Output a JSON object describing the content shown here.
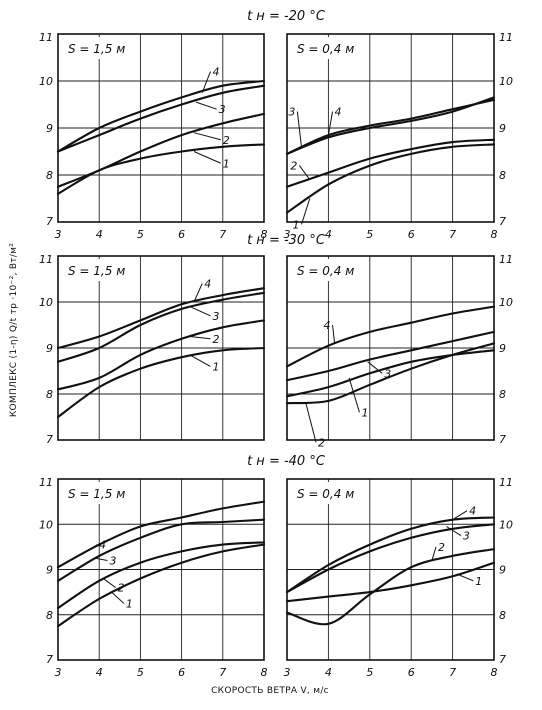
{
  "row_titles": [
    "t н = -20 °С",
    "t н = -30 °С",
    "t н = -40 °С"
  ],
  "axes": {
    "xlabel": "СКОРОСТЬ ВЕТРА V, м/с",
    "ylabel": "КОМПЛЕКС (1-η) Q/t тр ·10⁻², Вт/м²"
  },
  "chart_data": [
    {
      "type": "line",
      "row_title": "t н = -20 °С",
      "panel_label": "S = 1,5 м",
      "xlim": [
        3,
        8
      ],
      "ylim": [
        7,
        11
      ],
      "xticks": [
        "3",
        "4",
        "5",
        "6",
        "7",
        "8"
      ],
      "yticks": [
        "7",
        "8",
        "9",
        "10",
        "11"
      ],
      "ytick_side": "left",
      "series": [
        {
          "name": "1",
          "x": [
            3,
            4,
            5,
            6,
            7,
            8
          ],
          "y": [
            7.6,
            8.1,
            8.35,
            8.5,
            8.6,
            8.65
          ]
        },
        {
          "name": "2",
          "x": [
            3,
            4,
            5,
            6,
            7,
            8
          ],
          "y": [
            7.75,
            8.1,
            8.5,
            8.85,
            9.1,
            9.3
          ]
        },
        {
          "name": "3",
          "x": [
            3,
            4,
            5,
            6,
            7,
            8
          ],
          "y": [
            8.5,
            8.85,
            9.2,
            9.5,
            9.75,
            9.9
          ]
        },
        {
          "name": "4",
          "x": [
            3,
            4,
            5,
            6,
            7,
            8
          ],
          "y": [
            8.5,
            9.0,
            9.35,
            9.65,
            9.9,
            10.0
          ]
        }
      ],
      "line_labels": [
        {
          "text": "1",
          "anchor": [
            6.3,
            8.5
          ],
          "at": [
            6.95,
            8.25
          ]
        },
        {
          "text": "2",
          "anchor": [
            6.3,
            8.9
          ],
          "at": [
            6.95,
            8.75
          ]
        },
        {
          "text": "3",
          "anchor": [
            6.35,
            9.55
          ],
          "at": [
            6.85,
            9.4
          ]
        },
        {
          "text": "4",
          "anchor": [
            6.5,
            9.75
          ],
          "at": [
            6.7,
            10.2
          ]
        }
      ]
    },
    {
      "type": "line",
      "row_title": "t н = -20 °С",
      "panel_label": "S = 0,4 м",
      "xlim": [
        3,
        8
      ],
      "ylim": [
        7,
        11
      ],
      "xticks": [
        "3",
        "4",
        "5",
        "6",
        "7",
        "8"
      ],
      "yticks": [
        "7",
        "8",
        "9",
        "10",
        "11"
      ],
      "ytick_side": "right",
      "series": [
        {
          "name": "1",
          "x": [
            3,
            4,
            5,
            6,
            7,
            8
          ],
          "y": [
            7.2,
            7.8,
            8.2,
            8.45,
            8.6,
            8.65
          ]
        },
        {
          "name": "2",
          "x": [
            3,
            4,
            5,
            6,
            7,
            8
          ],
          "y": [
            7.75,
            8.05,
            8.35,
            8.55,
            8.7,
            8.75
          ]
        },
        {
          "name": "3",
          "x": [
            3,
            4,
            5,
            6,
            7,
            8
          ],
          "y": [
            8.45,
            8.8,
            9.0,
            9.15,
            9.35,
            9.65
          ]
        },
        {
          "name": "4",
          "x": [
            3,
            4,
            5,
            6,
            7,
            8
          ],
          "y": [
            8.45,
            8.85,
            9.05,
            9.2,
            9.4,
            9.6
          ]
        }
      ],
      "line_labels": [
        {
          "text": "1",
          "anchor": [
            3.55,
            7.5
          ],
          "at": [
            3.35,
            6.95
          ]
        },
        {
          "text": "2",
          "anchor": [
            3.55,
            7.9
          ],
          "at": [
            3.3,
            8.2
          ]
        },
        {
          "text": "3",
          "anchor": [
            3.35,
            8.6
          ],
          "at": [
            3.25,
            9.35
          ]
        },
        {
          "text": "4",
          "anchor": [
            4.0,
            8.85
          ],
          "at": [
            4.1,
            9.35
          ]
        }
      ]
    },
    {
      "type": "line",
      "row_title": "t н = -30 °С",
      "panel_label": "S = 1,5 м",
      "xlim": [
        3,
        8
      ],
      "ylim": [
        7,
        11
      ],
      "xticks": [],
      "yticks": [
        "7",
        "8",
        "9",
        "10",
        "11"
      ],
      "ytick_side": "left",
      "series": [
        {
          "name": "1",
          "x": [
            3,
            4,
            5,
            6,
            7,
            8
          ],
          "y": [
            7.5,
            8.15,
            8.55,
            8.8,
            8.95,
            9.0
          ]
        },
        {
          "name": "2",
          "x": [
            3,
            4,
            5,
            6,
            7,
            8
          ],
          "y": [
            8.1,
            8.35,
            8.85,
            9.2,
            9.45,
            9.6
          ]
        },
        {
          "name": "3",
          "x": [
            3,
            4,
            5,
            6,
            7,
            8
          ],
          "y": [
            8.7,
            9.0,
            9.5,
            9.85,
            10.05,
            10.2
          ]
        },
        {
          "name": "4",
          "x": [
            3,
            4,
            5,
            6,
            7,
            8
          ],
          "y": [
            9.0,
            9.25,
            9.6,
            9.95,
            10.15,
            10.3
          ]
        }
      ],
      "line_labels": [
        {
          "text": "1",
          "anchor": [
            6.2,
            8.85
          ],
          "at": [
            6.7,
            8.6
          ]
        },
        {
          "text": "2",
          "anchor": [
            6.2,
            9.25
          ],
          "at": [
            6.7,
            9.2
          ]
        },
        {
          "text": "3",
          "anchor": [
            6.2,
            9.9
          ],
          "at": [
            6.7,
            9.7
          ]
        },
        {
          "text": "4",
          "anchor": [
            6.3,
            10.0
          ],
          "at": [
            6.5,
            10.4
          ]
        }
      ]
    },
    {
      "type": "line",
      "row_title": "t н = -30 °С",
      "panel_label": "S = 0,4 м",
      "xlim": [
        3,
        8
      ],
      "ylim": [
        7,
        11
      ],
      "xticks": [],
      "yticks": [
        "7",
        "8",
        "9",
        "10",
        "11"
      ],
      "ytick_side": "right",
      "series": [
        {
          "name": "1",
          "x": [
            3,
            4,
            5,
            6,
            7,
            8
          ],
          "y": [
            7.95,
            8.15,
            8.45,
            8.7,
            8.85,
            8.95
          ]
        },
        {
          "name": "2",
          "x": [
            3,
            4,
            5,
            6,
            7,
            8
          ],
          "y": [
            7.8,
            7.85,
            8.2,
            8.55,
            8.85,
            9.1
          ]
        },
        {
          "name": "3",
          "x": [
            3,
            4,
            5,
            6,
            7,
            8
          ],
          "y": [
            8.3,
            8.5,
            8.75,
            8.95,
            9.15,
            9.35
          ]
        },
        {
          "name": "4",
          "x": [
            3,
            4,
            5,
            6,
            7,
            8
          ],
          "y": [
            8.6,
            9.05,
            9.35,
            9.55,
            9.75,
            9.9
          ]
        }
      ],
      "line_labels": [
        {
          "text": "1",
          "anchor": [
            4.5,
            8.35
          ],
          "at": [
            4.75,
            7.6
          ]
        },
        {
          "text": "2",
          "anchor": [
            3.45,
            7.82
          ],
          "at": [
            3.7,
            6.95
          ]
        },
        {
          "text": "3",
          "anchor": [
            4.95,
            8.7
          ],
          "at": [
            5.3,
            8.45
          ]
        },
        {
          "text": "4",
          "anchor": [
            4.15,
            9.1
          ],
          "at": [
            4.1,
            9.5
          ]
        }
      ]
    },
    {
      "type": "line",
      "row_title": "t н = -40 °С",
      "panel_label": "S = 1,5 м",
      "xlim": [
        3,
        8
      ],
      "ylim": [
        7,
        11
      ],
      "xticks": [
        "3",
        "4",
        "5",
        "6",
        "7",
        "8"
      ],
      "yticks": [
        "7",
        "8",
        "9",
        "10",
        "11"
      ],
      "ytick_side": "left",
      "series": [
        {
          "name": "1",
          "x": [
            3,
            4,
            5,
            6,
            7,
            8
          ],
          "y": [
            7.75,
            8.35,
            8.8,
            9.15,
            9.4,
            9.55
          ]
        },
        {
          "name": "2",
          "x": [
            3,
            4,
            5,
            6,
            7,
            8
          ],
          "y": [
            8.15,
            8.75,
            9.15,
            9.4,
            9.55,
            9.6
          ]
        },
        {
          "name": "3",
          "x": [
            3,
            4,
            5,
            6,
            7,
            8
          ],
          "y": [
            8.75,
            9.3,
            9.7,
            10.0,
            10.05,
            10.1
          ]
        },
        {
          "name": "4",
          "x": [
            3,
            4,
            5,
            6,
            7,
            8
          ],
          "y": [
            9.05,
            9.55,
            9.95,
            10.15,
            10.35,
            10.5
          ]
        }
      ],
      "line_labels": [
        {
          "text": "1",
          "anchor": [
            4.3,
            8.5
          ],
          "at": [
            4.6,
            8.25
          ]
        },
        {
          "text": "2",
          "anchor": [
            4.1,
            8.8
          ],
          "at": [
            4.4,
            8.6
          ]
        },
        {
          "text": "3",
          "anchor": [
            3.9,
            9.25
          ],
          "at": [
            4.2,
            9.2
          ]
        },
        {
          "text": "4",
          "anchor": [
            3.7,
            9.4
          ],
          "at": [
            3.95,
            9.55
          ]
        }
      ]
    },
    {
      "type": "line",
      "row_title": "t н = -40 °С",
      "panel_label": "S = 0,4 м",
      "xlim": [
        3,
        8
      ],
      "ylim": [
        7,
        11
      ],
      "xticks": [
        "3",
        "4",
        "5",
        "6",
        "7",
        "8"
      ],
      "yticks": [
        "7",
        "8",
        "9",
        "10",
        "11"
      ],
      "ytick_side": "right",
      "series": [
        {
          "name": "1",
          "x": [
            3,
            4,
            5,
            6,
            7,
            8
          ],
          "y": [
            8.3,
            8.4,
            8.5,
            8.65,
            8.85,
            9.15
          ]
        },
        {
          "name": "2",
          "x": [
            3,
            4,
            5,
            6,
            7,
            8
          ],
          "y": [
            8.05,
            7.8,
            8.45,
            9.05,
            9.3,
            9.45
          ]
        },
        {
          "name": "3",
          "x": [
            3,
            4,
            5,
            6,
            7,
            8
          ],
          "y": [
            8.5,
            9.0,
            9.4,
            9.7,
            9.9,
            10.0
          ]
        },
        {
          "name": "4",
          "x": [
            3,
            4,
            5,
            6,
            7,
            8
          ],
          "y": [
            8.5,
            9.1,
            9.55,
            9.9,
            10.1,
            10.15
          ]
        }
      ],
      "line_labels": [
        {
          "text": "1",
          "anchor": [
            7.1,
            8.9
          ],
          "at": [
            7.5,
            8.75
          ]
        },
        {
          "text": "2",
          "anchor": [
            6.5,
            9.2
          ],
          "at": [
            6.6,
            9.5
          ]
        },
        {
          "text": "3",
          "anchor": [
            6.85,
            9.95
          ],
          "at": [
            7.2,
            9.75
          ]
        },
        {
          "text": "4",
          "anchor": [
            7.0,
            10.1
          ],
          "at": [
            7.35,
            10.3
          ]
        }
      ]
    }
  ]
}
